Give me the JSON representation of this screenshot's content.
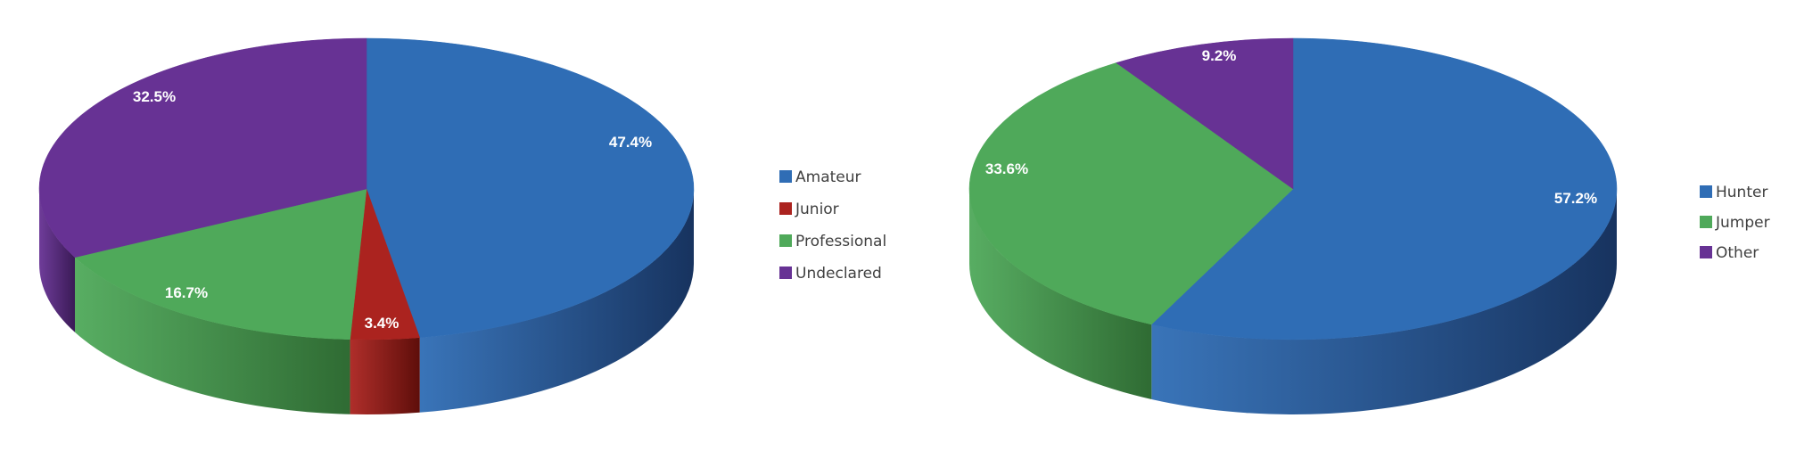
{
  "chart_data": [
    {
      "type": "pie",
      "style": "3d",
      "legend_position": "right",
      "slices": [
        {
          "label": "Amateur",
          "value": 47.4,
          "data_label": "47.4%",
          "color": "#2F6DB5",
          "side_color": "#17335F"
        },
        {
          "label": "Junior",
          "value": 3.4,
          "data_label": "3.4%",
          "color": "#AB231F",
          "side_color": "#5E0E0A"
        },
        {
          "label": "Professional",
          "value": 16.7,
          "data_label": "16.7%",
          "color": "#4FA95A",
          "side_color": "#2F6B33"
        },
        {
          "label": "Undeclared",
          "value": 32.5,
          "data_label": "32.5%",
          "color": "#673294",
          "side_color": "#3A1A56"
        }
      ]
    },
    {
      "type": "pie",
      "style": "3d",
      "legend_position": "right",
      "slices": [
        {
          "label": "Hunter",
          "value": 57.2,
          "data_label": "57.2%",
          "color": "#2F6DB5",
          "side_color": "#17335F"
        },
        {
          "label": "Jumper",
          "value": 33.6,
          "data_label": "33.6%",
          "color": "#4FA95A",
          "side_color": "#2F6B33"
        },
        {
          "label": "Other",
          "value": 9.2,
          "data_label": "9.2%",
          "color": "#673294",
          "side_color": "#3A1A56"
        }
      ]
    }
  ]
}
